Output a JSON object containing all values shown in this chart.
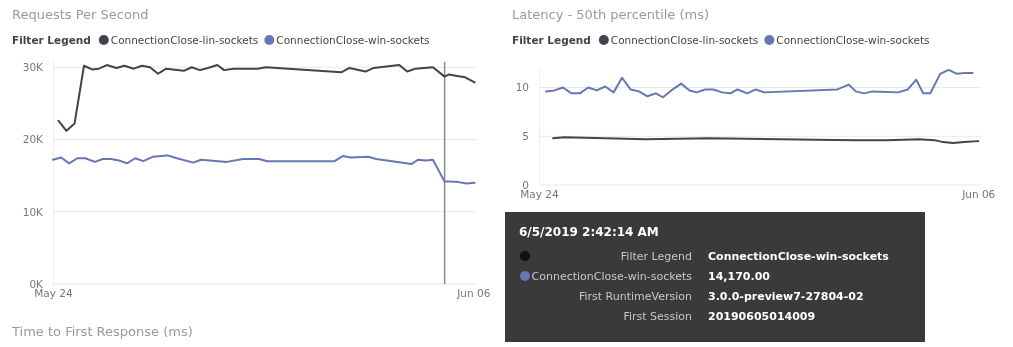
{
  "chart_data": [
    {
      "type": "line",
      "title": "Requests Per Second",
      "legend_title": "Filter Legend",
      "legend": "top left",
      "grid": "y",
      "xlim": [
        "2019-05-24",
        "2019-06-06T02:00"
      ],
      "xticks": [
        {
          "value": "2019-05-24",
          "label": "May 24"
        },
        {
          "value": "2019-06-06",
          "label": "Jun 06"
        }
      ],
      "ylim": [
        0,
        31000
      ],
      "yticks": [
        {
          "value": 0,
          "label": "0K"
        },
        {
          "value": 10000,
          "label": "10K"
        },
        {
          "value": 20000,
          "label": "20K"
        },
        {
          "value": 30000,
          "label": "30K"
        }
      ],
      "ref_lines": [
        {
          "axis": "x",
          "value": "2019-06-05T02:42",
          "color": "#8a8a8a"
        }
      ],
      "annotations": [
        "6/5/2019 2:42:14 AM",
        "Filter Legend",
        "ConnectionClose-win-sockets",
        "ConnectionClose-win-sockets",
        "14,170.00",
        "First RuntimeVersion",
        "3.0.0-preview7-27804-02",
        "First Session",
        "20190605014009"
      ],
      "series": [
        {
          "name": "ConnectionClose-lin-sockets",
          "color": "#41434d",
          "x": [
            "2019-05-24T04:00",
            "2019-05-24T10:00",
            "2019-05-24T16:00",
            "2019-05-24T23:00",
            "2019-05-25T05:00",
            "2019-05-25T10:00",
            "2019-05-25T16:00",
            "2019-05-25T23:00",
            "2019-05-26T05:00",
            "2019-05-26T12:00",
            "2019-05-26T18:00",
            "2019-05-27T00:00",
            "2019-05-27T06:00",
            "2019-05-27T12:00",
            "2019-05-28T01:00",
            "2019-05-28T07:00",
            "2019-05-28T13:00",
            "2019-05-28T19:00",
            "2019-05-29T02:00",
            "2019-05-29T07:00",
            "2019-05-29T14:00",
            "2019-05-30T08:00",
            "2019-05-30T14:00",
            "2019-06-01T22:00",
            "2019-06-02T04:00",
            "2019-06-02T16:00",
            "2019-06-02T22:00",
            "2019-06-03T17:00",
            "2019-06-03T23:00",
            "2019-06-04T05:00",
            "2019-06-04T18:00",
            "2019-06-05T02:42",
            "2019-06-05T06:00",
            "2019-06-05T12:00",
            "2019-06-05T18:00",
            "2019-06-06T01:00"
          ],
          "values": [
            22600,
            21200,
            22200,
            30200,
            29700,
            29800,
            30300,
            29900,
            30200,
            29800,
            30200,
            30000,
            29100,
            29800,
            29500,
            30000,
            29600,
            29900,
            30300,
            29600,
            29800,
            29800,
            30000,
            29300,
            29900,
            29400,
            29900,
            30300,
            29400,
            29800,
            30000,
            28700,
            29000,
            28800,
            28600,
            27900
          ]
        },
        {
          "name": "ConnectionClose-win-sockets",
          "color": "#6677b3",
          "x": [
            "2019-05-24T00:00",
            "2019-05-24T06:00",
            "2019-05-24T12:00",
            "2019-05-24T18:00",
            "2019-05-25T00:00",
            "2019-05-25T07:00",
            "2019-05-25T13:00",
            "2019-05-25T19:00",
            "2019-05-26T01:00",
            "2019-05-26T07:00",
            "2019-05-26T13:00",
            "2019-05-26T19:00",
            "2019-05-27T02:00",
            "2019-05-27T13:00",
            "2019-05-27T20:00",
            "2019-05-28T08:00",
            "2019-05-28T14:00",
            "2019-05-29T09:00",
            "2019-05-29T21:00",
            "2019-05-30T09:00",
            "2019-05-30T15:00",
            "2019-06-01T17:00",
            "2019-06-01T23:00",
            "2019-06-02T05:00",
            "2019-06-02T18:00",
            "2019-06-03T00:00",
            "2019-06-04T02:00",
            "2019-06-04T07:00",
            "2019-06-04T13:00",
            "2019-06-04T18:00",
            "2019-06-05T02:42",
            "2019-06-05T07:00",
            "2019-06-05T13:00",
            "2019-06-05T19:00",
            "2019-06-06T01:00"
          ],
          "values": [
            17200,
            17500,
            16700,
            17400,
            17400,
            16900,
            17300,
            17300,
            17100,
            16700,
            17400,
            17000,
            17600,
            17800,
            17400,
            16800,
            17200,
            16900,
            17300,
            17300,
            17000,
            17000,
            17700,
            17500,
            17600,
            17300,
            16600,
            17200,
            17100,
            17200,
            14170,
            14200,
            14100,
            13900,
            14000
          ]
        }
      ]
    },
    {
      "type": "line",
      "title": "Latency - 50th percentile (ms)",
      "legend_title": "Filter Legend",
      "legend": "top left",
      "grid": "y",
      "xlim": [
        "2019-05-24",
        "2019-06-06T02:00"
      ],
      "xticks": [
        {
          "value": "2019-05-24",
          "label": "May 24"
        },
        {
          "value": "2019-06-06",
          "label": "Jun 06"
        }
      ],
      "ylim": [
        0,
        12
      ],
      "yticks": [
        0,
        5,
        10
      ],
      "series": [
        {
          "name": "ConnectionClose-lin-sockets",
          "color": "#41434d",
          "x": [
            "2019-05-24T10:00",
            "2019-05-24T18:00",
            "2019-05-27T04:00",
            "2019-05-29T01:00",
            "2019-06-02T08:00",
            "2019-06-03T07:00",
            "2019-06-04T06:00",
            "2019-06-04T17:00",
            "2019-06-04T23:00",
            "2019-06-05T06:00",
            "2019-06-05T14:00",
            "2019-06-06T00:00"
          ],
          "values": [
            4.8,
            4.9,
            4.7,
            4.8,
            4.6,
            4.6,
            4.7,
            4.6,
            4.4,
            4.3,
            4.4,
            4.5
          ]
        },
        {
          "name": "ConnectionClose-win-sockets",
          "color": "#6677b3",
          "x": [
            "2019-05-24T05:00",
            "2019-05-24T11:00",
            "2019-05-24T17:00",
            "2019-05-24T23:00",
            "2019-05-25T05:00",
            "2019-05-25T11:00",
            "2019-05-25T17:00",
            "2019-05-25T23:00",
            "2019-05-26T05:00",
            "2019-05-26T11:00",
            "2019-05-26T17:00",
            "2019-05-26T23:00",
            "2019-05-27T05:00",
            "2019-05-27T11:00",
            "2019-05-27T16:00",
            "2019-05-27T22:00",
            "2019-05-28T05:00",
            "2019-05-28T11:00",
            "2019-05-28T16:00",
            "2019-05-28T22:00",
            "2019-05-29T04:00",
            "2019-05-29T10:00",
            "2019-05-29T16:00",
            "2019-05-29T21:00",
            "2019-05-30T04:00",
            "2019-05-30T10:00",
            "2019-05-30T16:00",
            "2019-06-01T20:00",
            "2019-06-02T04:00",
            "2019-06-02T09:00",
            "2019-06-02T15:00",
            "2019-06-02T21:00",
            "2019-06-03T15:00",
            "2019-06-03T22:00",
            "2019-06-04T04:00",
            "2019-06-04T09:00",
            "2019-06-04T14:00",
            "2019-06-04T21:00",
            "2019-06-05T03:00",
            "2019-06-05T09:00",
            "2019-06-05T15:00",
            "2019-06-05T20:00"
          ],
          "values": [
            9.6,
            9.7,
            10.0,
            9.4,
            9.4,
            10.0,
            9.7,
            10.1,
            9.5,
            11.0,
            9.8,
            9.6,
            9.1,
            9.4,
            9.0,
            9.7,
            10.4,
            9.7,
            9.5,
            9.8,
            9.8,
            9.5,
            9.4,
            9.8,
            9.4,
            9.8,
            9.5,
            9.8,
            10.3,
            9.6,
            9.4,
            9.6,
            9.5,
            9.8,
            10.8,
            9.4,
            9.4,
            11.4,
            11.8,
            11.4,
            11.5,
            11.5
          ]
        }
      ]
    },
    {
      "type": "other",
      "title": "Time to First Response (ms)"
    }
  ]
}
